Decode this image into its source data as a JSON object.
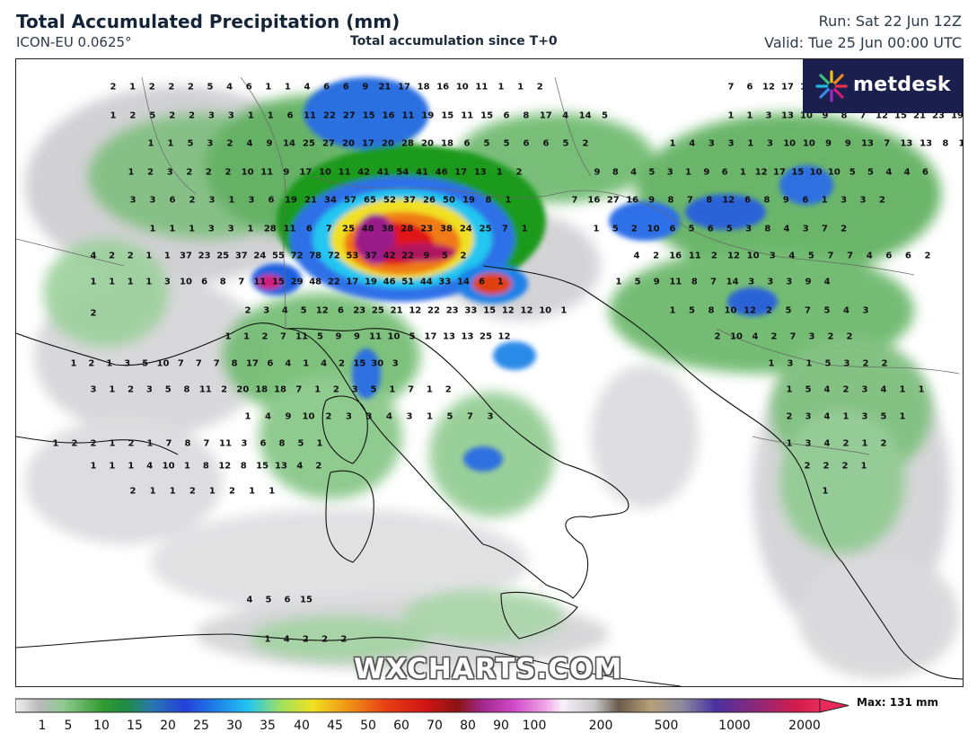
{
  "header": {
    "title": "Total Accumulated Precipitation (mm)",
    "model": "ICON-EU 0.0625°",
    "subtitle": "Total accumulation since T+0",
    "run": "Run: Sat 22 Jun 12Z",
    "valid": "Valid: Tue 25 Jun 00:00 UTC"
  },
  "logo": {
    "text": "metdesk",
    "icon": "metdesk-burst-icon",
    "bg": "#1b1f4e"
  },
  "watermark": "WXCHARTS.COM",
  "colorbar": {
    "ticks": [
      "1",
      "5",
      "10",
      "15",
      "20",
      "25",
      "30",
      "35",
      "40",
      "45",
      "50",
      "60",
      "70",
      "80",
      "90",
      "100",
      "200",
      "500",
      "1000",
      "2000"
    ],
    "max_label": "Max: 131 mm"
  },
  "map_values": [
    [
      "2",
      "1",
      "2",
      "2",
      "2",
      "5",
      "4",
      "6",
      "1",
      "1",
      "4",
      "6",
      "6",
      "9",
      "21",
      "17",
      "18",
      "16",
      "10",
      "11",
      "1",
      "1",
      "2"
    ],
    [
      "1",
      "2",
      "5",
      "2",
      "2",
      "3",
      "3",
      "1",
      "1",
      "6",
      "11",
      "22",
      "27",
      "15",
      "16",
      "11",
      "19",
      "15",
      "11",
      "15",
      "6",
      "8",
      "17",
      "4",
      "14",
      "5"
    ],
    [
      "1",
      "1",
      "5",
      "3",
      "2",
      "4",
      "9",
      "14",
      "25",
      "27",
      "20",
      "17",
      "20",
      "28",
      "20",
      "18",
      "6",
      "5",
      "5",
      "6",
      "6",
      "5",
      "2"
    ],
    [
      "1",
      "2",
      "3",
      "2",
      "2",
      "2",
      "10",
      "11",
      "9",
      "17",
      "10",
      "11",
      "42",
      "41",
      "54",
      "41",
      "46",
      "17",
      "13",
      "1",
      "2"
    ],
    [
      "3",
      "3",
      "6",
      "2",
      "3",
      "1",
      "3",
      "6",
      "19",
      "21",
      "34",
      "57",
      "65",
      "52",
      "37",
      "26",
      "50",
      "19",
      "8",
      "1"
    ],
    [
      "1",
      "1",
      "1",
      "3",
      "3",
      "1",
      "28",
      "11",
      "6",
      "7",
      "25",
      "48",
      "38",
      "28",
      "23",
      "38",
      "24",
      "25",
      "7",
      "1"
    ],
    [
      "4",
      "2",
      "2",
      "1",
      "1",
      "37",
      "23",
      "25",
      "37",
      "24",
      "55",
      "72",
      "78",
      "72",
      "53",
      "37",
      "42",
      "22",
      "9",
      "5",
      "2"
    ],
    [
      "1",
      "1",
      "1",
      "1",
      "3",
      "10",
      "6",
      "8",
      "7",
      "11",
      "15",
      "29",
      "48",
      "22",
      "17",
      "19",
      "46",
      "51",
      "44",
      "33",
      "14",
      "6",
      "1"
    ],
    [
      "2",
      "3",
      "4",
      "5",
      "12",
      "6",
      "23",
      "25",
      "21",
      "12",
      "22",
      "23",
      "33",
      "15",
      "12",
      "12",
      "10",
      "1"
    ],
    [
      "1",
      "1",
      "2",
      "7",
      "11",
      "5",
      "9",
      "9",
      "11",
      "10",
      "5",
      "17",
      "13",
      "13",
      "25",
      "12"
    ],
    [
      "1",
      "2",
      "1",
      "3",
      "5",
      "10",
      "7",
      "7",
      "7",
      "8",
      "17",
      "6",
      "4",
      "1",
      "4",
      "2",
      "15",
      "30",
      "3"
    ],
    [
      "3",
      "1",
      "2",
      "3",
      "5",
      "8",
      "11",
      "2",
      "20",
      "18",
      "18",
      "7",
      "1",
      "2",
      "3",
      "5",
      "1",
      "7",
      "1",
      "2"
    ],
    [
      "1",
      "4",
      "9",
      "10",
      "2",
      "3",
      "3",
      "4",
      "3",
      "1",
      "5",
      "7",
      "3"
    ],
    [
      "1",
      "2",
      "2",
      "1",
      "2",
      "1",
      "7",
      "8",
      "7",
      "11",
      "3",
      "6",
      "8",
      "5",
      "1"
    ],
    [
      "1",
      "1",
      "1",
      "4",
      "10",
      "1",
      "8",
      "12",
      "8",
      "15",
      "13",
      "4",
      "2"
    ],
    [
      "2",
      "1",
      "1",
      "2",
      "1",
      "2",
      "1",
      "1"
    ],
    [
      "2"
    ],
    [
      "1",
      "4",
      "2",
      "2",
      "2"
    ],
    [
      "4",
      "5",
      "6",
      "15"
    ],
    [
      "7",
      "6",
      "12",
      "17",
      "19",
      "19",
      "18",
      "22",
      "19",
      "19",
      "16"
    ],
    [
      "1",
      "1",
      "3",
      "13",
      "10",
      "9",
      "8",
      "7",
      "12",
      "15",
      "21",
      "23",
      "19",
      "13"
    ],
    [
      "1",
      "4",
      "3",
      "3",
      "1",
      "3",
      "10",
      "10",
      "9",
      "9",
      "13",
      "7",
      "13",
      "13",
      "8",
      "10",
      "16",
      "11"
    ],
    [
      "9",
      "8",
      "4",
      "5",
      "3",
      "1",
      "9",
      "6",
      "1",
      "12",
      "17",
      "15",
      "10",
      "10",
      "5",
      "5",
      "4",
      "4",
      "6"
    ],
    [
      "7",
      "16",
      "27",
      "16",
      "9",
      "8",
      "7",
      "8",
      "12",
      "6",
      "8",
      "9",
      "6",
      "1",
      "3",
      "3",
      "2"
    ],
    [
      "1",
      "5",
      "2",
      "10",
      "6",
      "5",
      "6",
      "5",
      "3",
      "8",
      "4",
      "3",
      "7",
      "2"
    ],
    [
      "4",
      "2",
      "16",
      "11",
      "2",
      "12",
      "10",
      "3",
      "4",
      "5",
      "7",
      "7",
      "4",
      "6",
      "6",
      "2"
    ],
    [
      "1",
      "5",
      "9",
      "11",
      "8",
      "7",
      "14",
      "3",
      "3",
      "3",
      "9",
      "4"
    ],
    [
      "1",
      "5",
      "8",
      "10",
      "12",
      "2",
      "5",
      "7",
      "5",
      "4",
      "3"
    ],
    [
      "2",
      "10",
      "4",
      "2",
      "7",
      "3",
      "2",
      "2"
    ],
    [
      "1",
      "3",
      "1",
      "5",
      "3",
      "2",
      "2"
    ],
    [
      "1",
      "5",
      "4",
      "2",
      "3",
      "4",
      "1",
      "1"
    ],
    [
      "2",
      "3",
      "4",
      "1",
      "3",
      "5",
      "1"
    ],
    [
      "1",
      "3",
      "4",
      "2",
      "1",
      "2"
    ],
    [
      "2",
      "2",
      "2",
      "1"
    ],
    [
      "1"
    ]
  ]
}
